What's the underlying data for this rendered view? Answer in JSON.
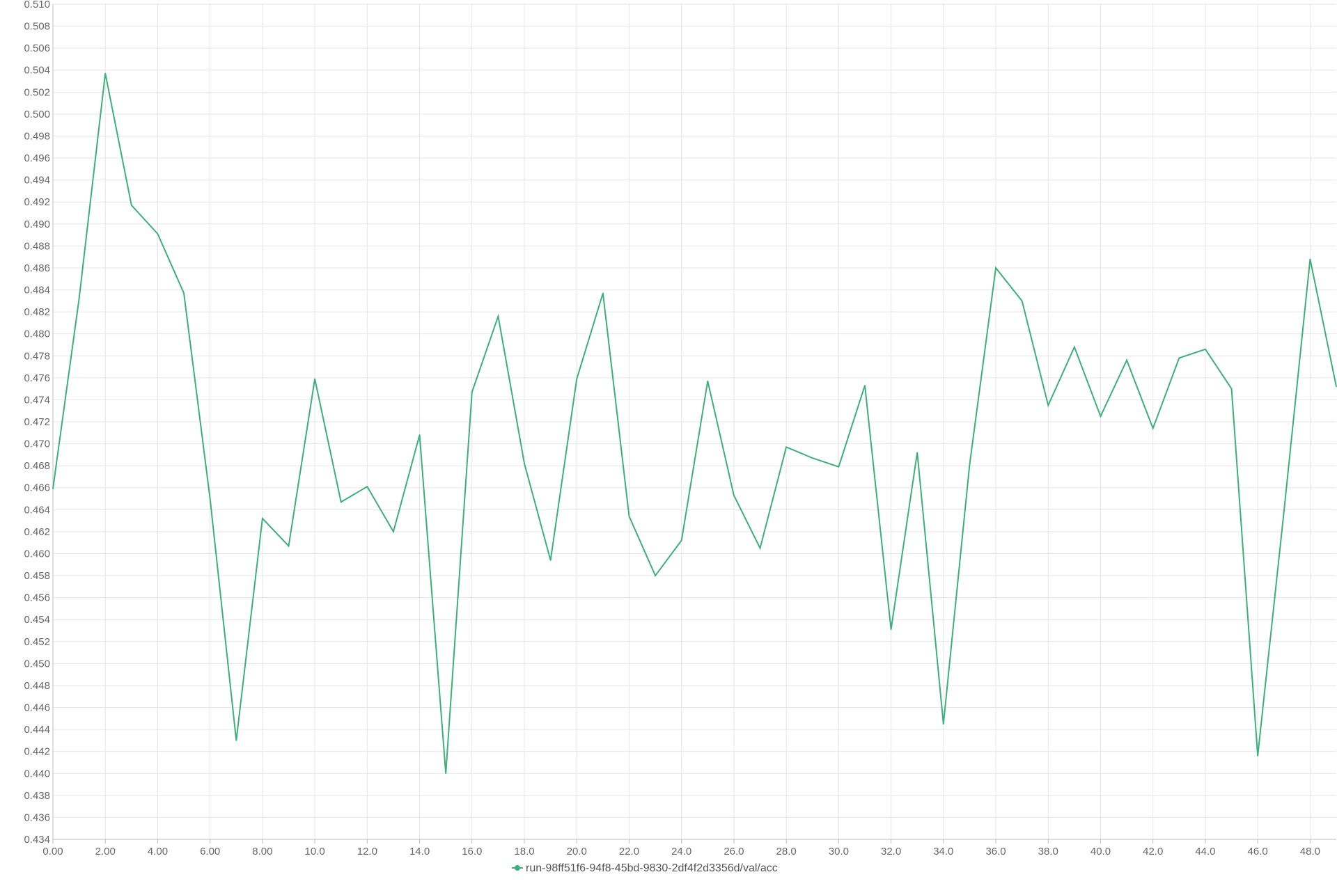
{
  "chart_data": {
    "type": "line",
    "title": "",
    "xlabel": "",
    "ylabel": "",
    "xlim": [
      0,
      49
    ],
    "ylim": [
      0.434,
      0.51
    ],
    "x_ticks": [
      0,
      2,
      4,
      6,
      8,
      10,
      12,
      14,
      16,
      18,
      20,
      22,
      24,
      26,
      28,
      30,
      32,
      34,
      36,
      38,
      40,
      42,
      44,
      46,
      48
    ],
    "x_tick_labels": [
      "0.00",
      "2.00",
      "4.00",
      "6.00",
      "8.00",
      "10.0",
      "12.0",
      "14.0",
      "16.0",
      "18.0",
      "20.0",
      "22.0",
      "24.0",
      "26.0",
      "28.0",
      "30.0",
      "32.0",
      "34.0",
      "36.0",
      "38.0",
      "40.0",
      "42.0",
      "44.0",
      "46.0",
      "48.0"
    ],
    "y_tick_labels": [
      "0.434",
      "0.436",
      "0.438",
      "0.440",
      "0.442",
      "0.444",
      "0.446",
      "0.448",
      "0.450",
      "0.452",
      "0.454",
      "0.456",
      "0.458",
      "0.460",
      "0.462",
      "0.464",
      "0.466",
      "0.468",
      "0.470",
      "0.472",
      "0.474",
      "0.476",
      "0.478",
      "0.480",
      "0.482",
      "0.484",
      "0.486",
      "0.488",
      "0.490",
      "0.492",
      "0.494",
      "0.496",
      "0.498",
      "0.500",
      "0.502",
      "0.504",
      "0.506",
      "0.508",
      "0.510"
    ],
    "grid": true,
    "legend_position": "bottom-center",
    "series": [
      {
        "name": "run-98ff51f6-94f8-45bd-9830-2df4f2d3356d/val/acc",
        "color": "#3cb07a",
        "x": [
          0,
          1,
          2,
          3,
          4,
          5,
          6,
          7,
          8,
          9,
          10,
          11,
          12,
          13,
          14,
          15,
          16,
          17,
          18,
          19,
          20,
          21,
          22,
          23,
          24,
          25,
          26,
          27,
          28,
          29,
          30,
          31,
          32,
          33,
          34,
          35,
          36,
          37,
          38,
          39,
          40,
          41,
          42,
          43,
          44,
          45,
          46,
          47,
          48,
          49
        ],
        "values": [
          0.4659,
          0.4832,
          0.5037,
          0.4917,
          0.4891,
          0.4837,
          0.465,
          0.443,
          0.4632,
          0.4607,
          0.4759,
          0.4647,
          0.4661,
          0.462,
          0.4708,
          0.44,
          0.4747,
          0.4816,
          0.4682,
          0.4594,
          0.4759,
          0.4837,
          0.4634,
          0.458,
          0.4612,
          0.4757,
          0.4653,
          0.4605,
          0.4697,
          0.4687,
          0.4679,
          0.4753,
          0.4531,
          0.4692,
          0.4445,
          0.4681,
          0.486,
          0.483,
          0.4735,
          0.4788,
          0.4725,
          0.4776,
          0.4714,
          0.4778,
          0.4786,
          0.475,
          0.4416,
          0.4638,
          0.4868,
          0.4752
        ]
      }
    ]
  }
}
